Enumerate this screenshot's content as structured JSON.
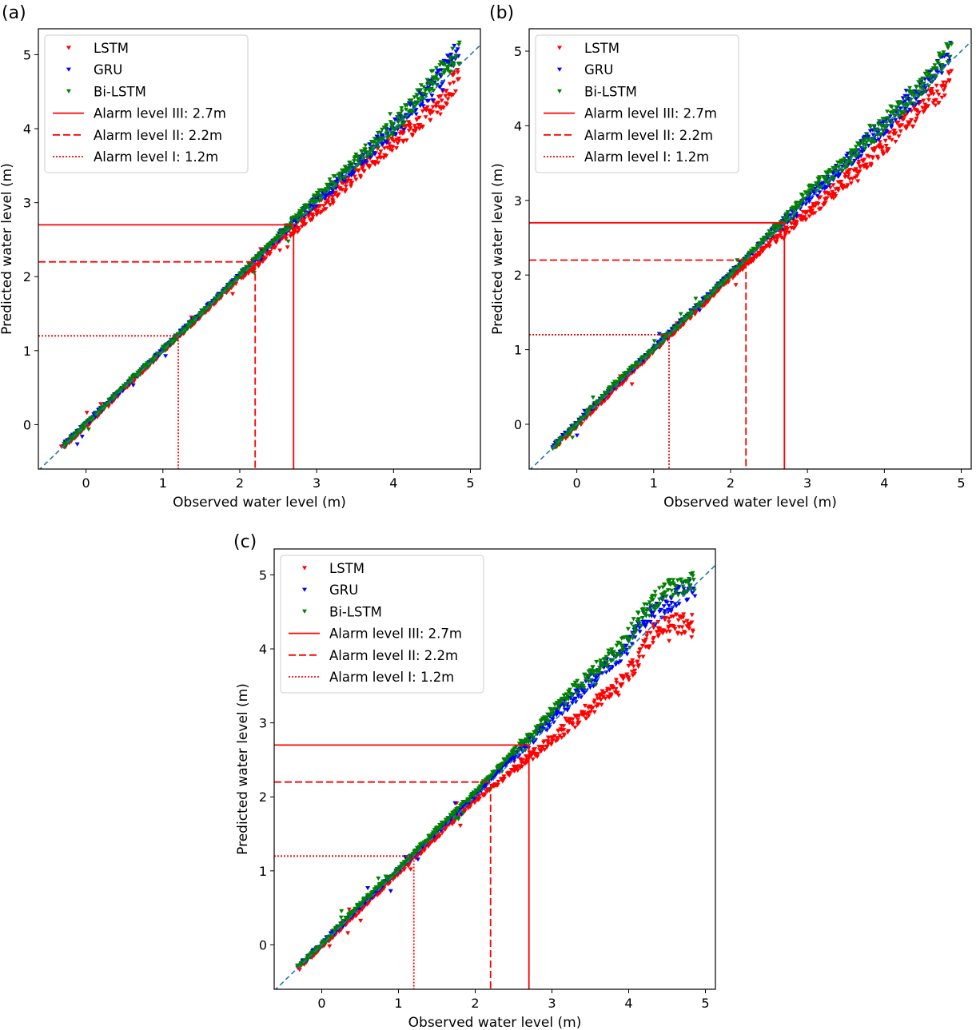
{
  "chart_data": [
    {
      "panel_label": "(a)",
      "type": "scatter",
      "xlabel": "Observed water level (m)",
      "ylabel": "Predicted water level (m)",
      "xlim": [
        -0.62,
        5.13
      ],
      "ylim": [
        -0.6,
        5.35
      ],
      "xticks": [
        "0",
        "1",
        "2",
        "3",
        "4",
        "5"
      ],
      "yticks": [
        "0",
        "1",
        "2",
        "3",
        "4",
        "5"
      ],
      "grid": false,
      "legend_position": "top-left",
      "reference_line": {
        "style": "dashed",
        "color": "#1f77b4",
        "slope": 1
      },
      "alarm_levels": [
        {
          "name": "Alarm level III: 2.7m",
          "value": 2.7,
          "style": "solid",
          "color": "#ff0000"
        },
        {
          "name": "Alarm level II: 2.2m",
          "value": 2.2,
          "style": "dashed",
          "color": "#ff0000"
        },
        {
          "name": "Alarm level I: 1.2m",
          "value": 1.2,
          "style": "dotted",
          "color": "#ff0000"
        }
      ],
      "series": [
        {
          "name": "LSTM",
          "color": "#ff0000",
          "marker": "triangle-down",
          "x": [
            -0.3,
            0.0,
            0.5,
            1.0,
            1.5,
            2.0,
            2.2,
            2.5,
            2.8,
            3.0,
            3.2,
            3.5,
            3.8,
            4.0,
            4.2,
            4.4,
            4.6,
            4.85
          ],
          "y": [
            -0.31,
            -0.02,
            0.49,
            0.99,
            1.48,
            1.98,
            2.12,
            2.45,
            2.71,
            2.9,
            3.05,
            3.36,
            3.63,
            3.82,
            3.98,
            4.15,
            4.32,
            4.72
          ]
        },
        {
          "name": "GRU",
          "color": "#0000ff",
          "marker": "triangle-down",
          "x": [
            -0.3,
            0.0,
            0.5,
            1.0,
            1.5,
            2.0,
            2.5,
            2.8,
            3.0,
            3.2,
            3.5,
            3.8,
            4.0,
            4.3,
            4.6,
            4.85
          ],
          "y": [
            -0.29,
            0.01,
            0.51,
            1.01,
            1.51,
            2.02,
            2.53,
            2.84,
            3.02,
            3.2,
            3.5,
            3.8,
            4.0,
            4.32,
            4.68,
            5.12
          ]
        },
        {
          "name": "Bi-LSTM",
          "color": "#008000",
          "marker": "triangle-down",
          "x": [
            -0.3,
            0.0,
            0.5,
            1.0,
            1.5,
            2.0,
            2.5,
            2.8,
            3.0,
            3.2,
            3.5,
            3.8,
            4.0,
            4.3,
            4.6,
            4.85
          ],
          "y": [
            -0.3,
            0.0,
            0.52,
            1.0,
            1.5,
            2.01,
            2.55,
            2.85,
            3.05,
            3.26,
            3.55,
            3.84,
            4.03,
            4.38,
            4.75,
            5.02
          ]
        }
      ]
    },
    {
      "panel_label": "(b)",
      "type": "scatter",
      "xlabel": "Observed water level (m)",
      "ylabel": "Predicted water level (m)",
      "xlim": [
        -0.62,
        5.13
      ],
      "ylim": [
        -0.6,
        5.3
      ],
      "xticks": [
        "0",
        "1",
        "2",
        "3",
        "4",
        "5"
      ],
      "yticks": [
        "0",
        "1",
        "2",
        "3",
        "4",
        "5"
      ],
      "grid": false,
      "legend_position": "top-left",
      "reference_line": {
        "style": "dashed",
        "color": "#1f77b4",
        "slope": 1
      },
      "alarm_levels": [
        {
          "name": "Alarm level III: 2.7m",
          "value": 2.7,
          "style": "solid",
          "color": "#ff0000"
        },
        {
          "name": "Alarm level II: 2.2m",
          "value": 2.2,
          "style": "dashed",
          "color": "#ff0000"
        },
        {
          "name": "Alarm level I: 1.2m",
          "value": 1.2,
          "style": "dotted",
          "color": "#ff0000"
        }
      ],
      "series": [
        {
          "name": "LSTM",
          "color": "#ff0000",
          "marker": "triangle-down",
          "x": [
            -0.3,
            0.0,
            0.5,
            1.0,
            1.5,
            2.0,
            2.3,
            2.5,
            2.8,
            3.0,
            3.3,
            3.6,
            3.9,
            4.2,
            4.5,
            4.85
          ],
          "y": [
            -0.32,
            -0.03,
            0.47,
            0.98,
            1.46,
            1.96,
            2.22,
            2.42,
            2.66,
            2.82,
            3.08,
            3.35,
            3.62,
            3.95,
            4.25,
            4.58
          ]
        },
        {
          "name": "GRU",
          "color": "#0000ff",
          "marker": "triangle-down",
          "x": [
            -0.3,
            0.0,
            0.5,
            1.0,
            1.5,
            2.0,
            2.5,
            2.8,
            3.0,
            3.3,
            3.6,
            3.9,
            4.2,
            4.5,
            4.85
          ],
          "y": [
            -0.29,
            0.01,
            0.52,
            1.01,
            1.52,
            2.02,
            2.53,
            2.8,
            3.0,
            3.3,
            3.6,
            3.9,
            4.2,
            4.5,
            4.98
          ]
        },
        {
          "name": "Bi-LSTM",
          "color": "#008000",
          "marker": "triangle-down",
          "x": [
            -0.3,
            0.0,
            0.5,
            1.0,
            1.5,
            2.0,
            2.5,
            2.8,
            3.0,
            3.3,
            3.6,
            3.9,
            4.2,
            4.5,
            4.85
          ],
          "y": [
            -0.3,
            0.0,
            0.55,
            1.0,
            1.5,
            2.0,
            2.55,
            2.83,
            3.12,
            3.33,
            3.62,
            3.92,
            4.25,
            4.52,
            5.02
          ]
        }
      ]
    },
    {
      "panel_label": "(c)",
      "type": "scatter",
      "xlabel": "Observed water level (m)",
      "ylabel": "Predicted water level (m)",
      "xlim": [
        -0.62,
        5.13
      ],
      "ylim": [
        -0.6,
        5.35
      ],
      "xticks": [
        "0",
        "1",
        "2",
        "3",
        "4",
        "5"
      ],
      "yticks": [
        "0",
        "1",
        "2",
        "3",
        "4",
        "5"
      ],
      "grid": false,
      "legend_position": "top-left",
      "reference_line": {
        "style": "dashed",
        "color": "#1f77b4",
        "slope": 1
      },
      "alarm_levels": [
        {
          "name": "Alarm level III: 2.7m",
          "value": 2.7,
          "style": "solid",
          "color": "#ff0000"
        },
        {
          "name": "Alarm level II: 2.2m",
          "value": 2.2,
          "style": "dashed",
          "color": "#ff0000"
        },
        {
          "name": "Alarm level I: 1.2m",
          "value": 1.2,
          "style": "dotted",
          "color": "#ff0000"
        }
      ],
      "series": [
        {
          "name": "LSTM",
          "color": "#ff0000",
          "marker": "triangle-down",
          "x": [
            -0.3,
            0.0,
            0.5,
            1.0,
            1.5,
            2.0,
            2.3,
            2.6,
            2.8,
            3.0,
            3.3,
            3.6,
            3.9,
            4.1,
            4.3,
            4.6,
            4.85
          ],
          "y": [
            -0.32,
            -0.02,
            0.47,
            0.97,
            1.46,
            1.95,
            2.18,
            2.45,
            2.6,
            2.78,
            3.02,
            3.28,
            3.55,
            3.8,
            4.2,
            4.35,
            4.3
          ]
        },
        {
          "name": "GRU",
          "color": "#0000ff",
          "marker": "triangle-down",
          "x": [
            -0.3,
            0.0,
            0.5,
            1.0,
            1.5,
            2.0,
            2.5,
            2.8,
            3.0,
            3.3,
            3.6,
            3.9,
            4.2,
            4.5,
            4.85
          ],
          "y": [
            -0.29,
            0.01,
            0.52,
            1.01,
            1.52,
            2.02,
            2.55,
            2.82,
            3.05,
            3.35,
            3.65,
            3.95,
            4.4,
            4.6,
            4.85
          ]
        },
        {
          "name": "Bi-LSTM",
          "color": "#008000",
          "marker": "triangle-down",
          "x": [
            -0.3,
            0.0,
            0.5,
            1.0,
            1.5,
            2.0,
            2.5,
            2.8,
            3.0,
            3.3,
            3.6,
            3.9,
            4.2,
            4.5,
            4.85
          ],
          "y": [
            -0.3,
            0.0,
            0.55,
            1.02,
            1.56,
            2.06,
            2.62,
            2.88,
            3.15,
            3.45,
            3.75,
            4.02,
            4.5,
            4.8,
            4.92
          ]
        }
      ]
    }
  ]
}
